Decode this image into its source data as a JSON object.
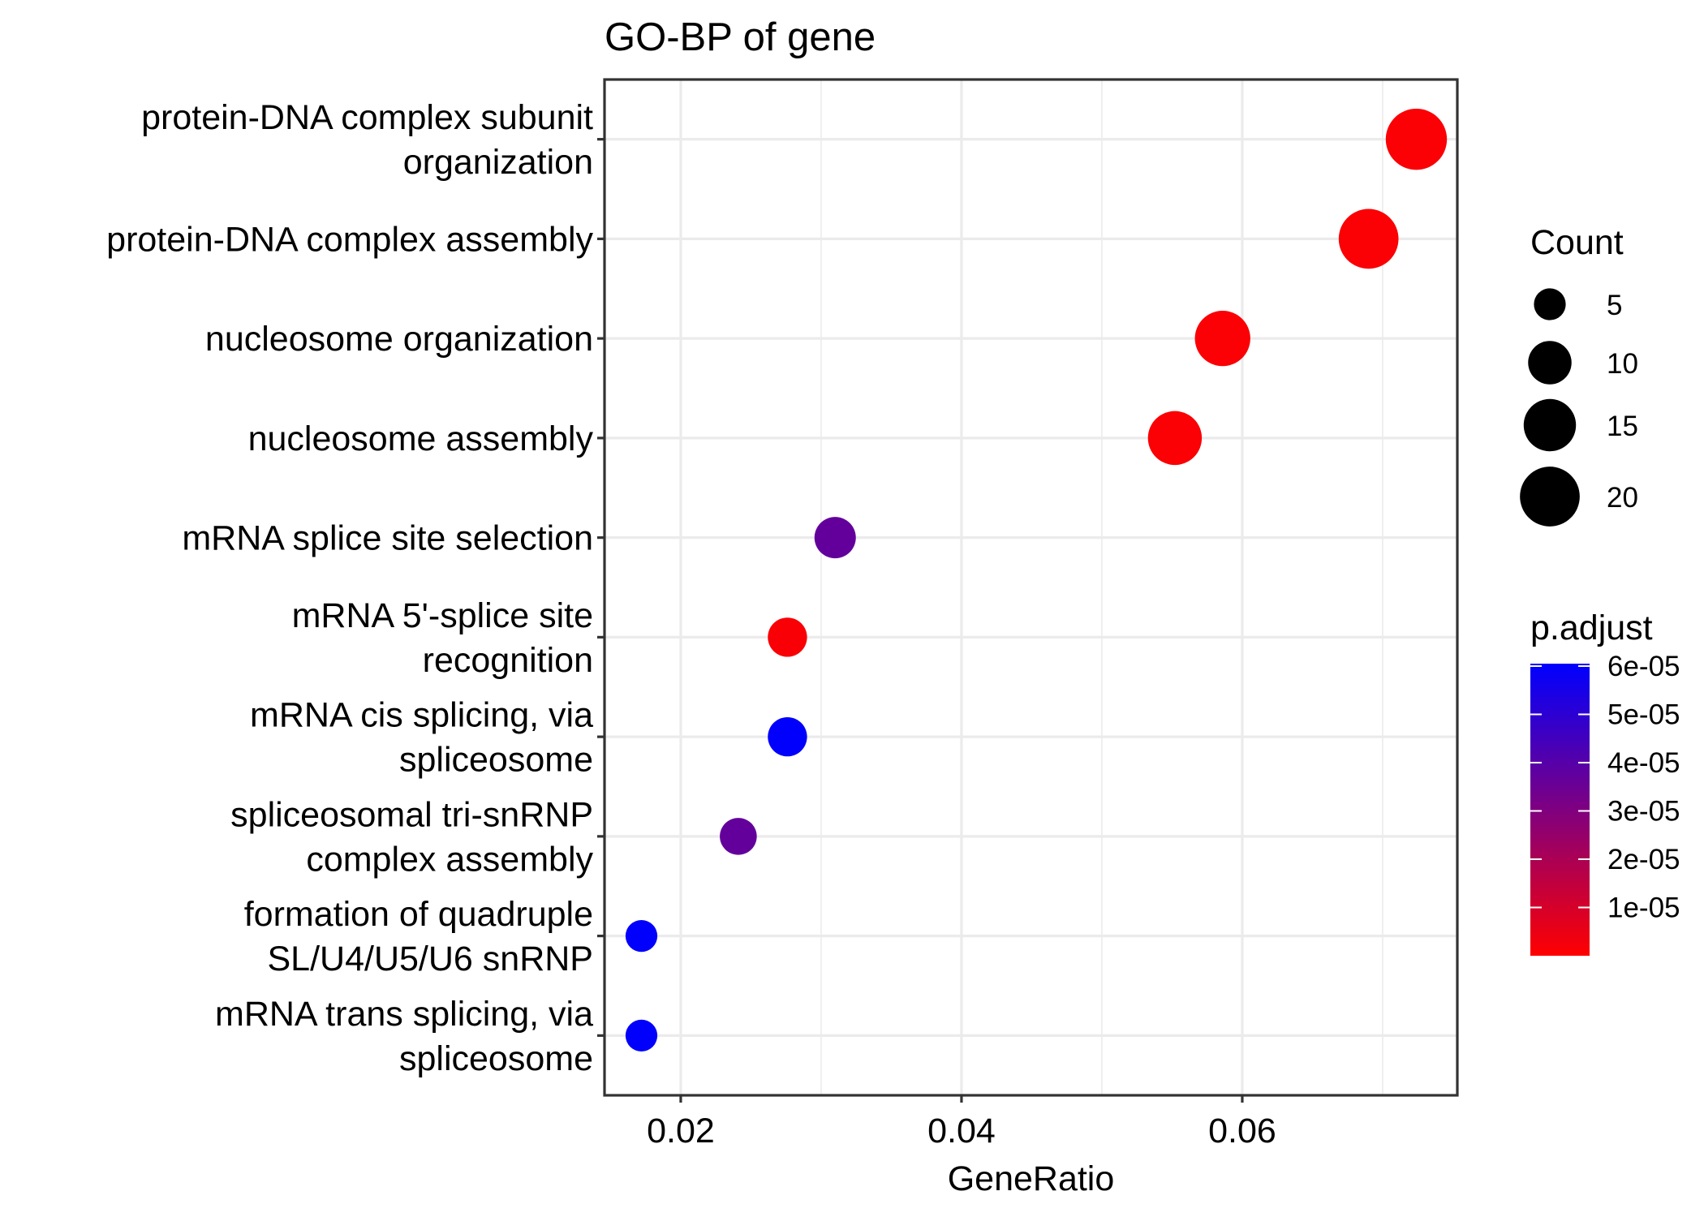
{
  "chart_data": {
    "type": "scatter",
    "subtype": "dotplot",
    "title": "GO-BP of gene",
    "xlabel": "GeneRatio",
    "ylabel": "",
    "xlim": [
      0.01457,
      0.07532
    ],
    "x_ticks": [
      0.02,
      0.04,
      0.06
    ],
    "x_tick_labels": [
      "0.02",
      "0.04",
      "0.06"
    ],
    "x_minor_ticks": [
      0.03,
      0.05,
      0.07
    ],
    "grid": true,
    "categories": [
      {
        "label": [
          "protein-DNA complex subunit",
          "organization"
        ],
        "gene_ratio": 0.0724,
        "count": 21,
        "p_adjust": 1e-06
      },
      {
        "label": [
          "protein-DNA complex assembly"
        ],
        "gene_ratio": 0.069,
        "count": 20,
        "p_adjust": 1e-06
      },
      {
        "label": [
          "nucleosome organization"
        ],
        "gene_ratio": 0.0586,
        "count": 17,
        "p_adjust": 1e-06
      },
      {
        "label": [
          "nucleosome assembly"
        ],
        "gene_ratio": 0.0552,
        "count": 16,
        "p_adjust": 1e-06
      },
      {
        "label": [
          "mRNA splice site selection"
        ],
        "gene_ratio": 0.031,
        "count": 9,
        "p_adjust": 3.7e-05
      },
      {
        "label": [
          "mRNA 5'-splice site",
          "recognition"
        ],
        "gene_ratio": 0.0276,
        "count": 8,
        "p_adjust": 1.5e-06
      },
      {
        "label": [
          "mRNA cis splicing, via",
          "spliceosome"
        ],
        "gene_ratio": 0.0276,
        "count": 8,
        "p_adjust": 6e-05
      },
      {
        "label": [
          "spliceosomal tri-snRNP",
          "complex assembly"
        ],
        "gene_ratio": 0.0241,
        "count": 7,
        "p_adjust": 3.7e-05
      },
      {
        "label": [
          "formation of quadruple",
          "SL/U4/U5/U6 snRNP"
        ],
        "gene_ratio": 0.0172,
        "count": 5,
        "p_adjust": 6e-05
      },
      {
        "label": [
          "mRNA trans splicing, via",
          "spliceosome"
        ],
        "gene_ratio": 0.0172,
        "count": 5,
        "p_adjust": 6e-05
      }
    ],
    "size_legend": {
      "title": "Count",
      "breaks": [
        5,
        10,
        15,
        20
      ],
      "labels": [
        "5",
        "10",
        "15",
        "20"
      ],
      "placement": "right"
    },
    "color_legend": {
      "title": "p.adjust",
      "range": [
        0.0,
        6.05e-05
      ],
      "breaks": [
        6e-05,
        5e-05,
        4e-05,
        3e-05,
        2e-05,
        1e-05
      ],
      "labels": [
        "6e-05",
        "5e-05",
        "4e-05",
        "3e-05",
        "2e-05",
        "1e-05"
      ],
      "low_color": "#FF0000",
      "high_color": "#0000FF",
      "placement": "right"
    }
  }
}
